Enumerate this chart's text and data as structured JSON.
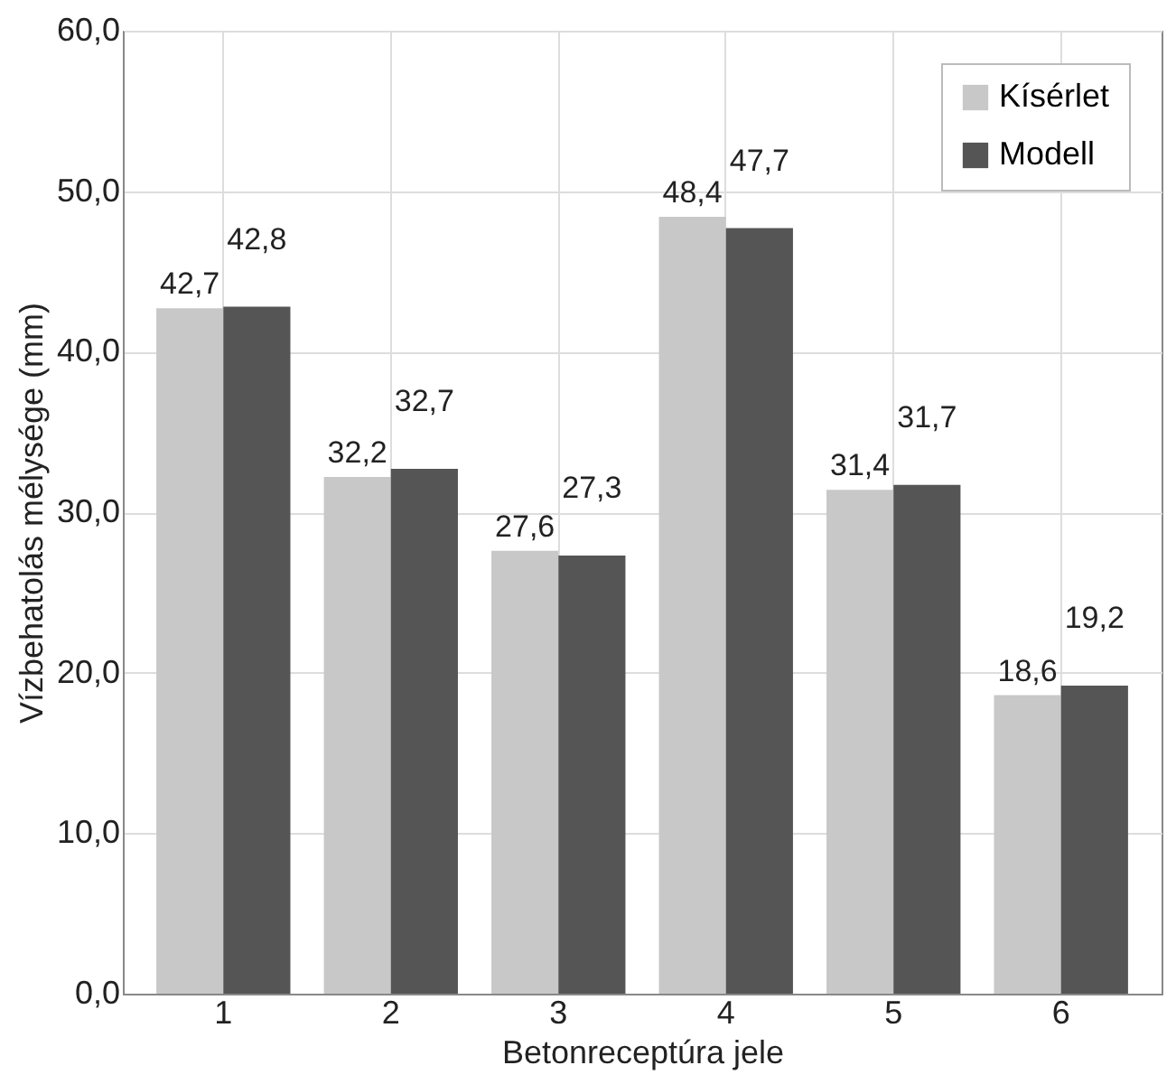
{
  "chart_data": {
    "type": "bar",
    "xlabel": "Betonreceptúra jele",
    "ylabel": "Vízbehatolás mélysége (mm)",
    "categories": [
      "1",
      "2",
      "3",
      "4",
      "5",
      "6"
    ],
    "series": [
      {
        "name": "Kísérlet",
        "color": "#c8c8c8",
        "values": [
          42.7,
          32.2,
          27.6,
          48.4,
          31.4,
          18.6
        ],
        "value_labels": [
          "42,7",
          "32,2",
          "27,6",
          "48,4",
          "31,4",
          "18,6"
        ]
      },
      {
        "name": "Modell",
        "color": "#555555",
        "values": [
          42.8,
          32.7,
          27.3,
          47.7,
          31.7,
          19.2
        ],
        "value_labels": [
          "42,8",
          "32,7",
          "27,3",
          "47,7",
          "31,7",
          "19,2"
        ]
      }
    ],
    "ylim": [
      0,
      60
    ],
    "yticks": [
      {
        "value": 0,
        "label": "0,0"
      },
      {
        "value": 10,
        "label": "10,0"
      },
      {
        "value": 20,
        "label": "20,0"
      },
      {
        "value": 30,
        "label": "30,0"
      },
      {
        "value": 40,
        "label": "40,0"
      },
      {
        "value": 50,
        "label": "50,0"
      },
      {
        "value": 60,
        "label": "60,0"
      }
    ],
    "grid": true,
    "legend": "top right"
  }
}
